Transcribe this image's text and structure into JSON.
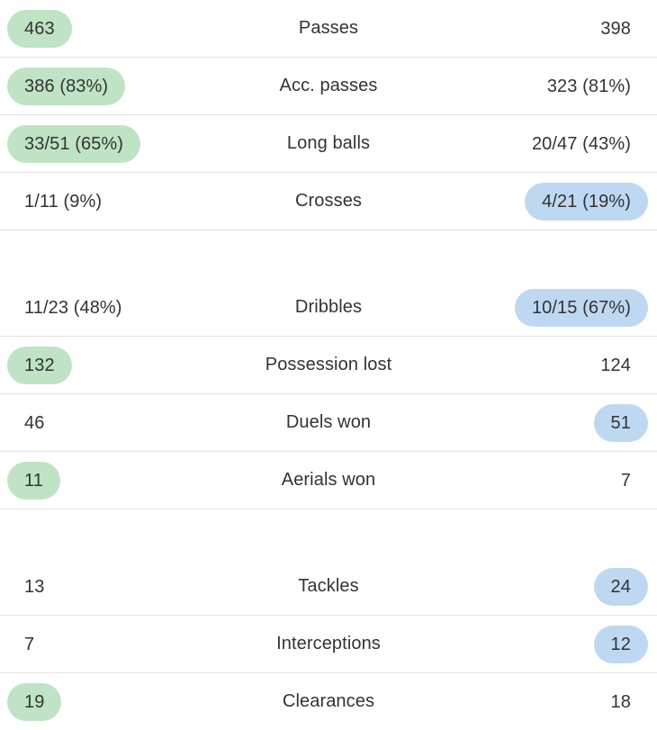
{
  "colors": {
    "home_highlight": "#bfe3c4",
    "away_highlight": "#bfd8f2",
    "divider": "#e3e3e3",
    "text": "#333333"
  },
  "groups": [
    {
      "rows": [
        {
          "label": "Passes",
          "home": "463",
          "away": "398",
          "highlight": "home"
        },
        {
          "label": "Acc. passes",
          "home": "386 (83%)",
          "away": "323 (81%)",
          "highlight": "home"
        },
        {
          "label": "Long balls",
          "home": "33/51 (65%)",
          "away": "20/47 (43%)",
          "highlight": "home"
        },
        {
          "label": "Crosses",
          "home": "1/11 (9%)",
          "away": "4/21 (19%)",
          "highlight": "away"
        }
      ]
    },
    {
      "rows": [
        {
          "label": "Dribbles",
          "home": "11/23 (48%)",
          "away": "10/15 (67%)",
          "highlight": "away"
        },
        {
          "label": "Possession lost",
          "home": "132",
          "away": "124",
          "highlight": "home"
        },
        {
          "label": "Duels won",
          "home": "46",
          "away": "51",
          "highlight": "away"
        },
        {
          "label": "Aerials won",
          "home": "11",
          "away": "7",
          "highlight": "home"
        }
      ]
    },
    {
      "rows": [
        {
          "label": "Tackles",
          "home": "13",
          "away": "24",
          "highlight": "away"
        },
        {
          "label": "Interceptions",
          "home": "7",
          "away": "12",
          "highlight": "away"
        },
        {
          "label": "Clearances",
          "home": "19",
          "away": "18",
          "highlight": "home"
        }
      ]
    }
  ]
}
